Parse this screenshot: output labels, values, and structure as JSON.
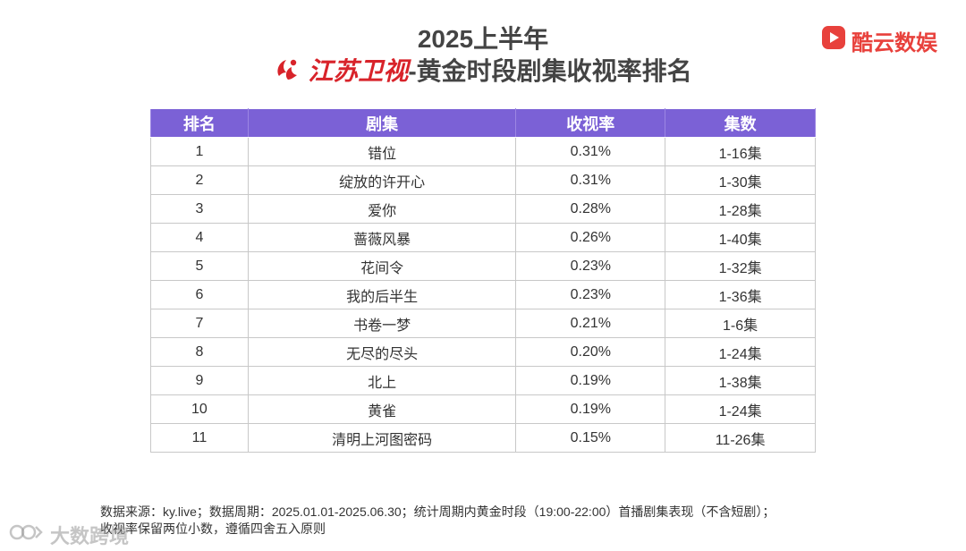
{
  "header": {
    "title_line1": "2025上半年",
    "channel_name": "江苏卫视",
    "title_suffix": "-黄金时段剧集收视率排名",
    "channel_logo_icon": "jiangsu-tv-logo-icon",
    "colors": {
      "channel_red": "#d8232a",
      "header_purple": "#7b61d6"
    }
  },
  "brand": {
    "name": "酷云数娱",
    "icon": "kuyun-play-logo-icon",
    "color": "#e8413c"
  },
  "table": {
    "columns": [
      "排名",
      "剧集",
      "收视率",
      "集数"
    ],
    "rows": [
      {
        "rank": "1",
        "name": "错位",
        "rating": "0.31%",
        "episodes": "1-16集"
      },
      {
        "rank": "2",
        "name": "绽放的许开心",
        "rating": "0.31%",
        "episodes": "1-30集"
      },
      {
        "rank": "3",
        "name": "爱你",
        "rating": "0.28%",
        "episodes": "1-28集"
      },
      {
        "rank": "4",
        "name": "蔷薇风暴",
        "rating": "0.26%",
        "episodes": "1-40集"
      },
      {
        "rank": "5",
        "name": "花间令",
        "rating": "0.23%",
        "episodes": "1-32集"
      },
      {
        "rank": "6",
        "name": "我的后半生",
        "rating": "0.23%",
        "episodes": "1-36集"
      },
      {
        "rank": "7",
        "name": "书卷一梦",
        "rating": "0.21%",
        "episodes": "1-6集"
      },
      {
        "rank": "8",
        "name": "无尽的尽头",
        "rating": "0.20%",
        "episodes": "1-24集"
      },
      {
        "rank": "9",
        "name": "北上",
        "rating": "0.19%",
        "episodes": "1-38集"
      },
      {
        "rank": "10",
        "name": "黄雀",
        "rating": "0.19%",
        "episodes": "1-24集"
      },
      {
        "rank": "11",
        "name": "清明上河图密码",
        "rating": "0.15%",
        "episodes": "11-26集"
      }
    ]
  },
  "footnote": {
    "line1": "数据来源：ky.live；数据周期：2025.01.01-2025.06.30；统计周期内黄金时段（19:00-22:00）首播剧集表现（不含短剧）；",
    "line2": "收视率保留两位小数，遵循四舍五入原则"
  },
  "watermark": {
    "text": "大数跨境",
    "icon": "dashukuajing-logo-icon"
  }
}
